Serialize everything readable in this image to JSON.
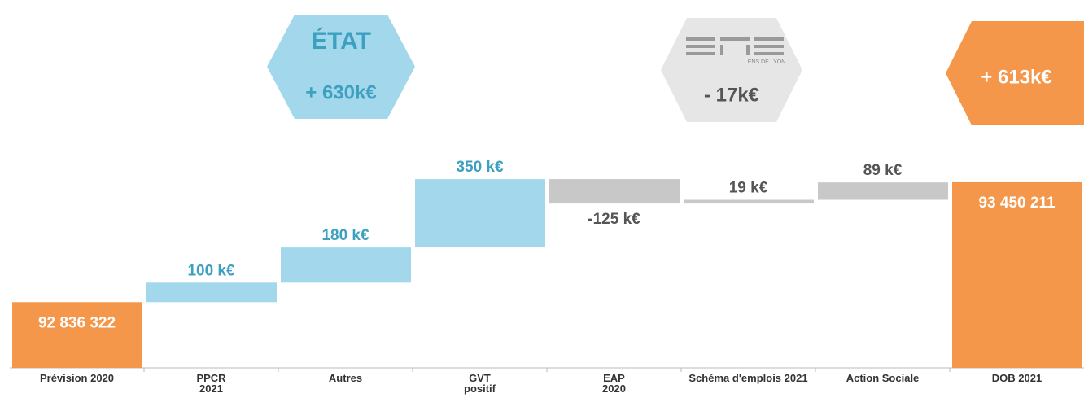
{
  "chart_data": {
    "type": "waterfall",
    "categories": [
      "Prévision 2020",
      "PPCR\n2021",
      "Autres",
      "GVT\npositif",
      "EAP\n2020",
      "Schéma d'emplois 2021",
      "Action Sociale",
      "DOB 2021"
    ],
    "measure": [
      "absolute",
      "relative",
      "relative",
      "relative",
      "relative",
      "relative",
      "relative",
      "absolute"
    ],
    "values": [
      92836322,
      100000,
      180000,
      350000,
      -125000,
      19000,
      89000,
      93450211
    ],
    "value_labels": [
      "92 836 322",
      "100 k€",
      "180 k€",
      "350 k€",
      "-125 k€",
      "19 k€",
      "89 k€",
      "93 450 211"
    ],
    "colors": [
      "#f5974a",
      "#a3d8ec",
      "#a3d8ec",
      "#a3d8ec",
      "#c8c8c8",
      "#c8c8c8",
      "#c8c8c8",
      "#f5974a"
    ],
    "label_colors": [
      "#ffffff",
      "#3ea0c0",
      "#3ea0c0",
      "#3ea0c0",
      "#555555",
      "#555555",
      "#555555",
      "#ffffff"
    ],
    "ylim": [
      92500000,
      93550000
    ],
    "annotations": [
      {
        "title": "ÉTAT",
        "text": "+ 630k€"
      },
      {
        "title": "ENS DE LYON",
        "text": "- 17k€"
      },
      {
        "text": "+ 613k€"
      }
    ]
  }
}
